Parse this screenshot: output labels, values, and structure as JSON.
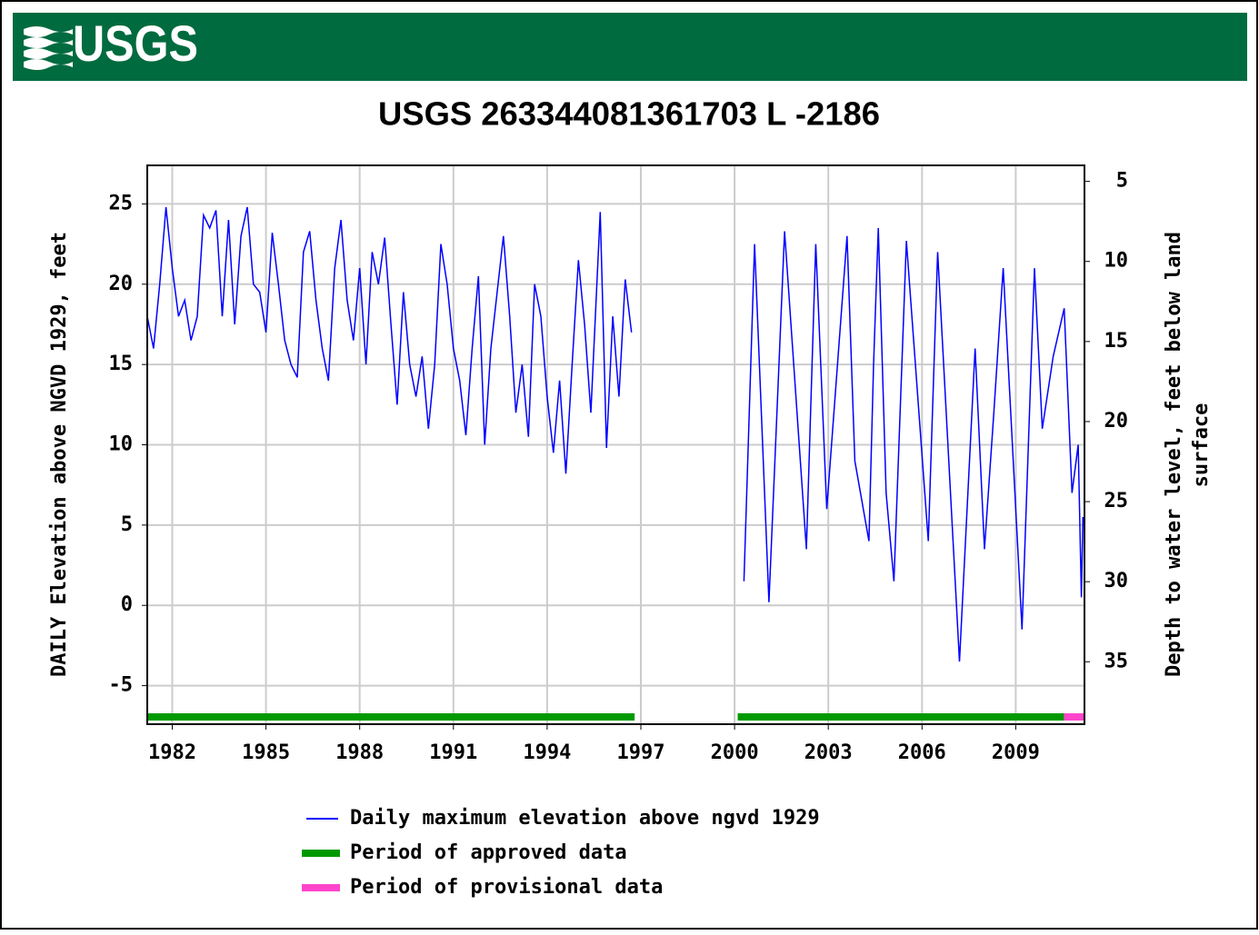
{
  "header": {
    "logo": "USGS"
  },
  "chart_data": {
    "type": "line",
    "title": "USGS 263344081361703 L  -2186",
    "ylabel": "DAILY Elevation above NGVD 1929, feet",
    "y2label": [
      "Depth to water level, feet below land",
      "surface"
    ],
    "xlim": [
      1981.2,
      2011.2
    ],
    "xticks": [
      1982,
      1985,
      1988,
      1991,
      1994,
      1997,
      2000,
      2003,
      2006,
      2009
    ],
    "ylim": [
      -7.4,
      27.4
    ],
    "yticks": [
      -5,
      0,
      5,
      10,
      15,
      20,
      25
    ],
    "y2lim": [
      38.9,
      4.0
    ],
    "y2ticks": [
      5,
      10,
      15,
      20,
      25,
      30,
      35
    ],
    "grid": true,
    "series": [
      {
        "name": "Daily maximum elevation above ngvd 1929",
        "color": "#0000ff",
        "x": [
          1981.2,
          1981.4,
          1981.6,
          1981.8,
          1982.0,
          1982.2,
          1982.4,
          1982.6,
          1982.8,
          1983.0,
          1983.2,
          1983.4,
          1983.6,
          1983.8,
          1984.0,
          1984.2,
          1984.4,
          1984.6,
          1984.8,
          1985.0,
          1985.2,
          1985.4,
          1985.6,
          1985.8,
          1986.0,
          1986.2,
          1986.4,
          1986.6,
          1986.8,
          1987.0,
          1987.2,
          1987.4,
          1987.6,
          1987.8,
          1988.0,
          1988.2,
          1988.4,
          1988.6,
          1988.8,
          1989.0,
          1989.2,
          1989.4,
          1989.6,
          1989.8,
          1990.0,
          1990.2,
          1990.4,
          1990.6,
          1990.8,
          1991.0,
          1991.2,
          1991.4,
          1991.6,
          1991.8,
          1992.0,
          1992.2,
          1992.4,
          1992.6,
          1992.8,
          1993.0,
          1993.2,
          1993.4,
          1993.6,
          1993.8,
          1994.0,
          1994.2,
          1994.4,
          1994.6,
          1994.8,
          1995.0,
          1995.2,
          1995.4,
          1995.7,
          1995.9,
          1996.1,
          1996.3,
          1996.5,
          1996.7,
          1998.5,
          2000.3,
          2000.64,
          2001.1,
          2001.6,
          2002.3,
          2002.6,
          2002.95,
          2003.6,
          2003.85,
          2004.3,
          2004.45,
          2004.6,
          2004.85,
          2005.1,
          2005.5,
          2006.2,
          2006.5,
          2007.2,
          2007.7,
          2008.0,
          2008.3,
          2008.6,
          2009.2,
          2009.6,
          2009.85,
          2010.2,
          2010.55,
          2010.8,
          2011.0,
          2011.1,
          2011.15
        ],
        "values": [
          18,
          16,
          20,
          24.8,
          21,
          18,
          19,
          16.5,
          18,
          24.3,
          23.5,
          24.6,
          18,
          24,
          17.5,
          23,
          24.8,
          20,
          19.5,
          17,
          23.2,
          20,
          16.5,
          15,
          14.2,
          22,
          23.3,
          19,
          16,
          14,
          21,
          24,
          19,
          16.5,
          21,
          15,
          22,
          20,
          22.9,
          17.5,
          12.5,
          19.5,
          15,
          13,
          15.5,
          11,
          15,
          22.5,
          20,
          16,
          14,
          10.6,
          16,
          20.5,
          10,
          16,
          19.5,
          23,
          18,
          12,
          15,
          10.5,
          20,
          18,
          13,
          9.5,
          14,
          8.2,
          15,
          21.5,
          17.5,
          12,
          24.5,
          9.8,
          18,
          13,
          20.3,
          17,
          null,
          1.5,
          22.5,
          0.2,
          23.3,
          3.5,
          22.5,
          6,
          23,
          9,
          4,
          15,
          23.5,
          7,
          1.5,
          22.7,
          4,
          22,
          -3.5,
          16,
          3.5,
          12,
          21,
          -1.5,
          21,
          11,
          15.5,
          18.5,
          7,
          10,
          0.5,
          5.5
        ]
      }
    ],
    "periods": [
      {
        "name": "Period of approved data",
        "color": "#009900",
        "ranges": [
          [
            1981.2,
            1996.8
          ],
          [
            2000.1,
            2010.55
          ]
        ]
      },
      {
        "name": "Period of provisional data",
        "color": "#ff44cc",
        "ranges": [
          [
            2010.55,
            2011.2
          ]
        ]
      }
    ]
  }
}
